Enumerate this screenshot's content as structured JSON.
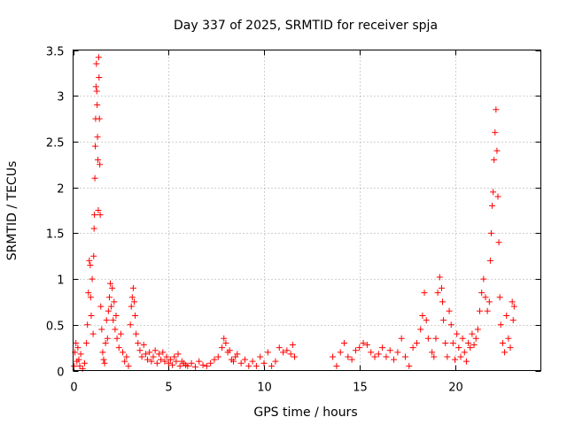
{
  "chart_data": {
    "type": "scatter",
    "title": "Day 337 of 2025, SRMTID for receiver spja",
    "xlabel": "GPS time / hours",
    "ylabel": "SRMTID / TECUs",
    "xlim": [
      0,
      24.5
    ],
    "ylim": [
      0,
      3.5
    ],
    "xticks": [
      0,
      5,
      10,
      15,
      20
    ],
    "xtick_labels": [
      "0",
      "5",
      "10",
      "15",
      "20"
    ],
    "yticks": [
      0,
      0.5,
      1,
      1.5,
      2,
      2.5,
      3,
      3.5
    ],
    "ytick_labels": [
      "0",
      "0.5",
      "1",
      "1.5",
      "2",
      "2.5",
      "3",
      "3.5"
    ],
    "grid": true,
    "marker": "+",
    "color": "#ff0000",
    "series": [
      {
        "name": "SRMTID",
        "points": [
          [
            0.05,
            0.05
          ],
          [
            0.1,
            0.2
          ],
          [
            0.15,
            0.3
          ],
          [
            0.2,
            0.1
          ],
          [
            0.25,
            0.25
          ],
          [
            0.3,
            0.12
          ],
          [
            0.35,
            0.05
          ],
          [
            0.4,
            0.18
          ],
          [
            0.5,
            0.02
          ],
          [
            0.6,
            0.08
          ],
          [
            0.7,
            0.3
          ],
          [
            0.75,
            0.5
          ],
          [
            0.8,
            0.85
          ],
          [
            0.85,
            1.2
          ],
          [
            0.9,
            1.15
          ],
          [
            0.92,
            0.8
          ],
          [
            0.95,
            0.6
          ],
          [
            1.0,
            1.0
          ],
          [
            1.05,
            0.4
          ],
          [
            1.08,
            1.25
          ],
          [
            1.1,
            1.55
          ],
          [
            1.12,
            1.7
          ],
          [
            1.14,
            2.1
          ],
          [
            1.16,
            2.45
          ],
          [
            1.18,
            2.75
          ],
          [
            1.2,
            3.1
          ],
          [
            1.22,
            3.35
          ],
          [
            1.24,
            3.05
          ],
          [
            1.26,
            2.9
          ],
          [
            1.28,
            2.55
          ],
          [
            1.3,
            2.3
          ],
          [
            1.32,
            1.75
          ],
          [
            1.34,
            3.42
          ],
          [
            1.36,
            3.2
          ],
          [
            1.38,
            2.75
          ],
          [
            1.4,
            2.25
          ],
          [
            1.42,
            1.7
          ],
          [
            1.45,
            0.7
          ],
          [
            1.5,
            0.45
          ],
          [
            1.55,
            0.2
          ],
          [
            1.6,
            0.12
          ],
          [
            1.65,
            0.08
          ],
          [
            1.7,
            0.3
          ],
          [
            1.75,
            0.55
          ],
          [
            1.8,
            0.35
          ],
          [
            1.85,
            0.65
          ],
          [
            1.9,
            0.8
          ],
          [
            1.95,
            0.95
          ],
          [
            2.0,
            0.7
          ],
          [
            2.05,
            0.9
          ],
          [
            2.1,
            0.55
          ],
          [
            2.15,
            0.75
          ],
          [
            2.2,
            0.45
          ],
          [
            2.25,
            0.6
          ],
          [
            2.3,
            0.35
          ],
          [
            2.4,
            0.25
          ],
          [
            2.5,
            0.4
          ],
          [
            2.6,
            0.2
          ],
          [
            2.7,
            0.1
          ],
          [
            2.8,
            0.15
          ],
          [
            2.9,
            0.05
          ],
          [
            3.0,
            0.5
          ],
          [
            3.05,
            0.7
          ],
          [
            3.1,
            0.8
          ],
          [
            3.15,
            0.9
          ],
          [
            3.2,
            0.75
          ],
          [
            3.25,
            0.6
          ],
          [
            3.3,
            0.4
          ],
          [
            3.4,
            0.3
          ],
          [
            3.5,
            0.22
          ],
          [
            3.6,
            0.15
          ],
          [
            3.7,
            0.28
          ],
          [
            3.8,
            0.18
          ],
          [
            3.9,
            0.12
          ],
          [
            4.0,
            0.2
          ],
          [
            4.1,
            0.1
          ],
          [
            4.2,
            0.15
          ],
          [
            4.3,
            0.22
          ],
          [
            4.4,
            0.08
          ],
          [
            4.5,
            0.18
          ],
          [
            4.6,
            0.12
          ],
          [
            4.7,
            0.2
          ],
          [
            4.8,
            0.1
          ],
          [
            4.9,
            0.15
          ],
          [
            5.0,
            0.08
          ],
          [
            5.1,
            0.12
          ],
          [
            5.2,
            0.06
          ],
          [
            5.3,
            0.15
          ],
          [
            5.4,
            0.1
          ],
          [
            5.5,
            0.18
          ],
          [
            5.6,
            0.05
          ],
          [
            5.7,
            0.1
          ],
          [
            5.8,
            0.08
          ],
          [
            5.9,
            0.06
          ],
          [
            6.0,
            0.05
          ],
          [
            6.2,
            0.08
          ],
          [
            6.4,
            0.04
          ],
          [
            6.6,
            0.1
          ],
          [
            6.8,
            0.06
          ],
          [
            7.0,
            0.05
          ],
          [
            7.2,
            0.08
          ],
          [
            7.4,
            0.12
          ],
          [
            7.6,
            0.15
          ],
          [
            7.8,
            0.25
          ],
          [
            7.9,
            0.35
          ],
          [
            8.0,
            0.3
          ],
          [
            8.1,
            0.2
          ],
          [
            8.2,
            0.22
          ],
          [
            8.3,
            0.12
          ],
          [
            8.4,
            0.1
          ],
          [
            8.5,
            0.15
          ],
          [
            8.6,
            0.18
          ],
          [
            8.8,
            0.08
          ],
          [
            9.0,
            0.12
          ],
          [
            9.2,
            0.05
          ],
          [
            9.4,
            0.1
          ],
          [
            9.6,
            0.05
          ],
          [
            9.8,
            0.15
          ],
          [
            10.0,
            0.08
          ],
          [
            10.2,
            0.2
          ],
          [
            10.4,
            0.05
          ],
          [
            10.6,
            0.1
          ],
          [
            10.8,
            0.25
          ],
          [
            11.0,
            0.2
          ],
          [
            11.2,
            0.22
          ],
          [
            11.4,
            0.18
          ],
          [
            11.5,
            0.28
          ],
          [
            11.6,
            0.15
          ],
          [
            13.6,
            0.15
          ],
          [
            13.8,
            0.05
          ],
          [
            14.0,
            0.2
          ],
          [
            14.2,
            0.3
          ],
          [
            14.4,
            0.15
          ],
          [
            14.6,
            0.12
          ],
          [
            14.8,
            0.22
          ],
          [
            15.0,
            0.25
          ],
          [
            15.2,
            0.3
          ],
          [
            15.4,
            0.28
          ],
          [
            15.6,
            0.2
          ],
          [
            15.8,
            0.15
          ],
          [
            16.0,
            0.18
          ],
          [
            16.2,
            0.25
          ],
          [
            16.4,
            0.15
          ],
          [
            16.6,
            0.22
          ],
          [
            16.8,
            0.12
          ],
          [
            17.0,
            0.2
          ],
          [
            17.2,
            0.35
          ],
          [
            17.4,
            0.15
          ],
          [
            17.6,
            0.05
          ],
          [
            17.8,
            0.25
          ],
          [
            18.0,
            0.3
          ],
          [
            18.2,
            0.45
          ],
          [
            18.3,
            0.6
          ],
          [
            18.4,
            0.85
          ],
          [
            18.5,
            0.55
          ],
          [
            18.6,
            0.35
          ],
          [
            18.8,
            0.2
          ],
          [
            18.9,
            0.15
          ],
          [
            19.0,
            0.35
          ],
          [
            19.1,
            0.85
          ],
          [
            19.2,
            1.02
          ],
          [
            19.3,
            0.9
          ],
          [
            19.35,
            0.75
          ],
          [
            19.4,
            0.55
          ],
          [
            19.5,
            0.3
          ],
          [
            19.6,
            0.15
          ],
          [
            19.7,
            0.65
          ],
          [
            19.8,
            0.5
          ],
          [
            19.9,
            0.3
          ],
          [
            20.0,
            0.12
          ],
          [
            20.1,
            0.4
          ],
          [
            20.2,
            0.25
          ],
          [
            20.3,
            0.15
          ],
          [
            20.4,
            0.35
          ],
          [
            20.5,
            0.2
          ],
          [
            20.6,
            0.1
          ],
          [
            20.7,
            0.3
          ],
          [
            20.8,
            0.25
          ],
          [
            20.9,
            0.4
          ],
          [
            21.0,
            0.28
          ],
          [
            21.1,
            0.35
          ],
          [
            21.2,
            0.45
          ],
          [
            21.3,
            0.65
          ],
          [
            21.4,
            0.85
          ],
          [
            21.5,
            1.0
          ],
          [
            21.6,
            0.8
          ],
          [
            21.7,
            0.65
          ],
          [
            21.8,
            0.75
          ],
          [
            21.85,
            1.2
          ],
          [
            21.9,
            1.5
          ],
          [
            21.95,
            1.8
          ],
          [
            22.0,
            1.95
          ],
          [
            22.05,
            2.3
          ],
          [
            22.1,
            2.6
          ],
          [
            22.15,
            2.85
          ],
          [
            22.2,
            2.4
          ],
          [
            22.25,
            1.9
          ],
          [
            22.3,
            1.4
          ],
          [
            22.35,
            0.8
          ],
          [
            22.4,
            0.5
          ],
          [
            22.5,
            0.3
          ],
          [
            22.6,
            0.2
          ],
          [
            22.7,
            0.6
          ],
          [
            22.8,
            0.35
          ],
          [
            22.9,
            0.25
          ],
          [
            23.0,
            0.75
          ],
          [
            23.05,
            0.55
          ],
          [
            23.1,
            0.7
          ]
        ]
      }
    ]
  }
}
